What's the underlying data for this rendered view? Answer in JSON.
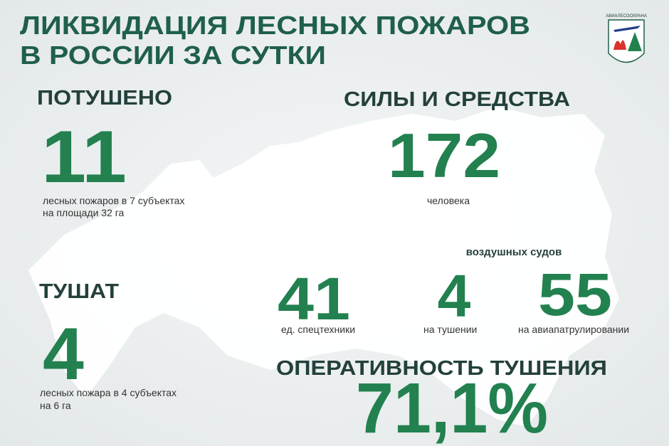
{
  "header": {
    "title_lines": [
      "ЛИКВИДАЦИЯ ЛЕСНЫХ ПОЖАРОВ",
      "В РОССИИ ЗА СУТКИ"
    ],
    "logo_text": "АВИАЛЕСООХРАНА"
  },
  "extinguished": {
    "heading": "ПОТУШЕНО",
    "number": "11",
    "caption_lines": [
      "лесных пожаров в 7 субъектах",
      "на площади  32 га"
    ]
  },
  "active": {
    "heading": "ТУШАТ",
    "number": "4",
    "caption_lines": [
      "лесных пожара в 4 субъектах",
      "на 6 га"
    ]
  },
  "forces": {
    "heading": "СИЛЫ И СРЕДСТВА",
    "people": {
      "number": "172",
      "caption": "человека"
    },
    "aircraft_heading": "воздушных судов",
    "vehicles": {
      "number": "41",
      "caption": "ед. спецтехники"
    },
    "firefighting": {
      "number": "4",
      "caption": "на тушении"
    },
    "patrol": {
      "number": "55",
      "caption": "на авиапатрулировании"
    }
  },
  "efficiency": {
    "heading": "ОПЕРАТИВНОСТЬ ТУШЕНИЯ",
    "number": "71,1%"
  }
}
